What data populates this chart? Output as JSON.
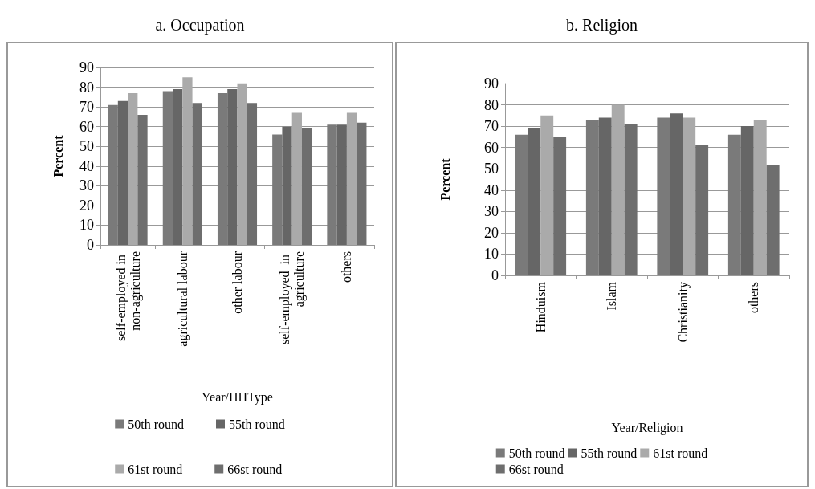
{
  "chart_data": [
    {
      "type": "bar",
      "title": "a. Occupation",
      "xlabel": "Year/HHType",
      "ylabel": "Percent",
      "categories": [
        "self-employed in non-agriculture",
        "agricultural labour",
        "other labour",
        "self-employed  in agriculture",
        "others"
      ],
      "ylim": [
        0,
        90
      ],
      "yticks": [
        0,
        10,
        20,
        30,
        40,
        50,
        60,
        70,
        80,
        90
      ],
      "grid": "y",
      "legend": "bottom",
      "series": [
        {
          "name": "50th round",
          "color": "#7a7a7a",
          "values": [
            71,
            78,
            77,
            56,
            61
          ]
        },
        {
          "name": "55th round",
          "color": "#666666",
          "values": [
            73,
            79,
            79,
            60,
            61
          ]
        },
        {
          "name": "61st round",
          "color": "#aaaaaa",
          "values": [
            77,
            85,
            82,
            67,
            67
          ]
        },
        {
          "name": "66st round",
          "color": "#6e6e6e",
          "values": [
            66,
            72,
            72,
            59,
            62
          ]
        }
      ]
    },
    {
      "type": "bar",
      "title": "b. Religion",
      "xlabel": "Year/Religion",
      "ylabel": "Percent",
      "categories": [
        "Hinduism",
        "Islam",
        "Christianity",
        "others"
      ],
      "ylim": [
        0,
        90
      ],
      "yticks": [
        0,
        10,
        20,
        30,
        40,
        50,
        60,
        70,
        80,
        90
      ],
      "grid": "y",
      "legend": "bottom",
      "series": [
        {
          "name": "50th round",
          "color": "#7a7a7a",
          "values": [
            66,
            73,
            74,
            66
          ]
        },
        {
          "name": "55th round",
          "color": "#666666",
          "values": [
            69,
            74,
            76,
            70
          ]
        },
        {
          "name": "61st round",
          "color": "#aaaaaa",
          "values": [
            75,
            80,
            74,
            73
          ]
        },
        {
          "name": "66st round",
          "color": "#6e6e6e",
          "values": [
            65,
            71,
            61,
            52
          ]
        }
      ]
    }
  ]
}
